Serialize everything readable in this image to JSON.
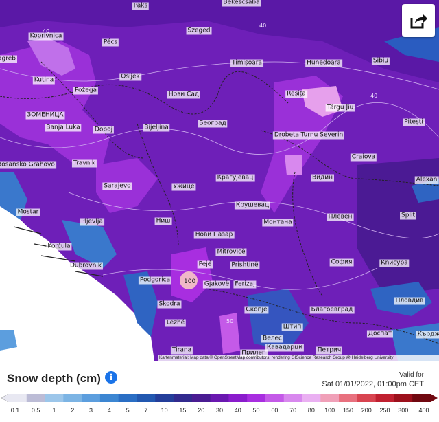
{
  "map": {
    "cities": [
      {
        "name": "Paks"
      },
      {
        "name": "Bekescsaba"
      },
      {
        "name": "Szeged"
      },
      {
        "name": "Koprivnica"
      },
      {
        "name": "Pécs"
      },
      {
        "name": "agreb"
      },
      {
        "name": "Timișoara"
      },
      {
        "name": "Hunedoara"
      },
      {
        "name": "Sibiu"
      },
      {
        "name": "Kutina"
      },
      {
        "name": "Osijek"
      },
      {
        "name": "Požega"
      },
      {
        "name": "Нови Сад"
      },
      {
        "name": "Reșița"
      },
      {
        "name": "Târgu Jiu"
      },
      {
        "name": "Pitești"
      },
      {
        "name": "ЗОМЕНИЦА"
      },
      {
        "name": "Banja Luka"
      },
      {
        "name": "Doboj"
      },
      {
        "name": "Bijeljina"
      },
      {
        "name": "Београд"
      },
      {
        "name": "Drobeta-Turnu Severin"
      },
      {
        "name": "Bosansko Grahovo"
      },
      {
        "name": "Travnik"
      },
      {
        "name": "Craiova"
      },
      {
        "name": "Крагујевац"
      },
      {
        "name": "Видин"
      },
      {
        "name": "Alexan"
      },
      {
        "name": "Sarajevo"
      },
      {
        "name": "Ужице"
      },
      {
        "name": "Крушевац"
      },
      {
        "name": "Split"
      },
      {
        "name": "Mostar"
      },
      {
        "name": "Pljevlja"
      },
      {
        "name": "Ниш"
      },
      {
        "name": "Монтана"
      },
      {
        "name": "Плевен"
      },
      {
        "name": "Нови Пазар"
      },
      {
        "name": "Mitrovicë"
      },
      {
        "name": "Dubrovnik"
      },
      {
        "name": "Pejë"
      },
      {
        "name": "Prishtinë"
      },
      {
        "name": "София"
      },
      {
        "name": "Кnисура"
      },
      {
        "name": "Podgorica"
      },
      {
        "name": "Gjakovë"
      },
      {
        "name": "Ferizaj"
      },
      {
        "name": "Skodra"
      },
      {
        "name": "Скопје"
      },
      {
        "name": "Благоевград"
      },
      {
        "name": "Пловдив"
      },
      {
        "name": "Lezhë"
      },
      {
        "name": "Штип"
      },
      {
        "name": "Tirana"
      },
      {
        "name": "Велес"
      },
      {
        "name": "Прилеп"
      },
      {
        "name": "Кавадарци"
      },
      {
        "name": "Петрич"
      },
      {
        "name": "Доспат"
      },
      {
        "name": "Кърдж"
      },
      {
        "name": "Korčula"
      }
    ],
    "contour_labels": [
      "40",
      "100",
      "40",
      "40",
      "50",
      "40"
    ],
    "attribution": "Kartenmaterial: Map data © OpenStreetMap contributors, rendering GIScience Research Group @ Heidelberg University"
  },
  "share_icon": "share-icon",
  "legend": {
    "title": "Snow depth (cm)",
    "info_icon": "i",
    "valid_label": "Valid for",
    "valid_time": "Sat 01/01/2022, 01:00pm CET",
    "scale": [
      {
        "label": "0.1",
        "color": "#e8e8f2"
      },
      {
        "label": "0.5",
        "color": "#bcbcd6"
      },
      {
        "label": "1",
        "color": "#9cc6ea"
      },
      {
        "label": "2",
        "color": "#7cb4e4"
      },
      {
        "label": "3",
        "color": "#5c9ede"
      },
      {
        "label": "4",
        "color": "#3c86d2"
      },
      {
        "label": "5",
        "color": "#2a6ec4"
      },
      {
        "label": "7",
        "color": "#2258b0"
      },
      {
        "label": "10",
        "color": "#243e9a"
      },
      {
        "label": "15",
        "color": "#322a8e"
      },
      {
        "label": "20",
        "color": "#4a1c92"
      },
      {
        "label": "30",
        "color": "#6a18b0"
      },
      {
        "label": "40",
        "color": "#8a1ccc"
      },
      {
        "label": "50",
        "color": "#a82ee0"
      },
      {
        "label": "60",
        "color": "#c45ae8"
      },
      {
        "label": "70",
        "color": "#d888ee"
      },
      {
        "label": "80",
        "color": "#eab0f2"
      },
      {
        "label": "100",
        "color": "#f0a0b8"
      },
      {
        "label": "150",
        "color": "#e8707e"
      },
      {
        "label": "200",
        "color": "#d84450"
      },
      {
        "label": "250",
        "color": "#c02030"
      },
      {
        "label": "300",
        "color": "#9c101c"
      },
      {
        "label": "400",
        "color": "#700810"
      }
    ]
  }
}
